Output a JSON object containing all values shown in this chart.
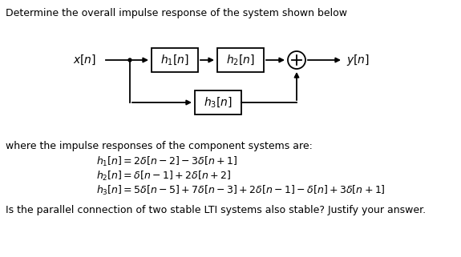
{
  "title_text": "Determine the overall impulse response of the system shown below",
  "where_text": "where the impulse responses of the component systems are:",
  "h1_label": "$h_1[n]$",
  "h2_label": "$h_2[n]$",
  "h3_label": "$h_3[n]$",
  "xn_label": "$x[n]$",
  "yn_label": "$y[n]$",
  "eq1": "$h_1[n] = 2\\delta[n-2] - 3\\delta[n+1]$",
  "eq2": "$h_2[n] = \\delta[n-1] + 2\\delta[n+2]$",
  "eq3": "$h_3[n] = 5\\delta[n-5] + 7\\delta[n-3] + 2\\delta[n-1] - \\delta[n] + 3\\delta[n+1]$",
  "last_text": "Is the parallel connection of two stable LTI systems also stable? Justify your answer.",
  "bg_color": "#ffffff",
  "text_color": "#000000",
  "box_edge_color": "#000000",
  "arrow_color": "#000000",
  "title_fontsize": 9,
  "body_fontsize": 9,
  "math_fontsize": 9,
  "diagram_fontsize": 10
}
